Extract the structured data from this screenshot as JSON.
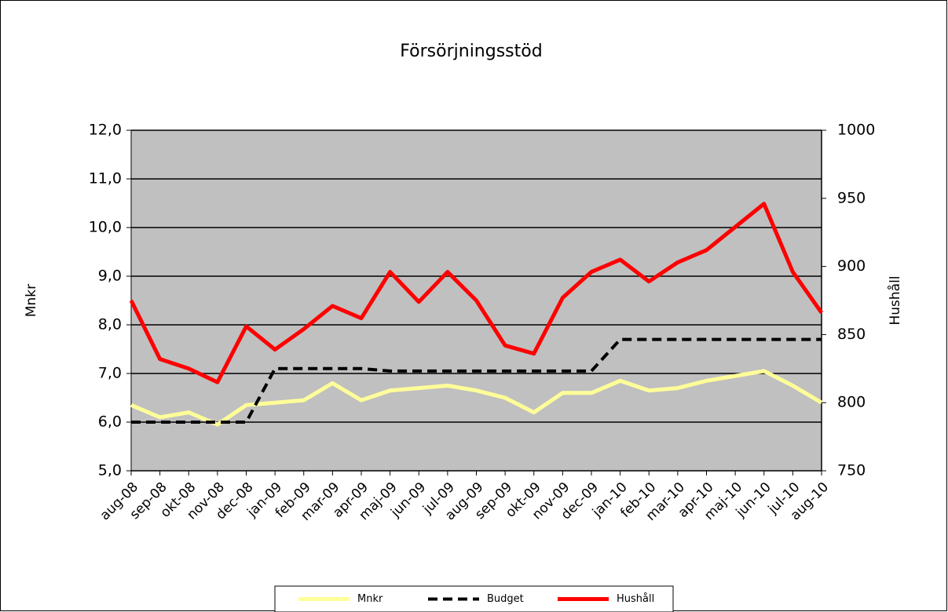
{
  "chart_data": {
    "type": "line",
    "title": "Försörjningsstöd",
    "y_label": "Mnkr",
    "y2_label": "Hushåll",
    "categories": [
      "aug-08",
      "sep-08",
      "okt-08",
      "nov-08",
      "dec-08",
      "jan-09",
      "feb-09",
      "mar-09",
      "apr-09",
      "maj-09",
      "jun-09",
      "jul-09",
      "aug-09",
      "sep-09",
      "okt-09",
      "nov-09",
      "dec-09",
      "jan-10",
      "feb-10",
      "mar-10",
      "apr-10",
      "maj-10",
      "jun-10",
      "jul-10",
      "aug-10"
    ],
    "series": [
      {
        "name": "Mnkr",
        "color": "#ffff99",
        "style": "solid",
        "axis": "y",
        "values": [
          6.35,
          6.1,
          6.2,
          5.95,
          6.35,
          6.4,
          6.45,
          6.8,
          6.45,
          6.65,
          6.7,
          6.75,
          6.65,
          6.5,
          6.2,
          6.6,
          6.6,
          6.85,
          6.65,
          6.7,
          6.85,
          6.95,
          7.05,
          6.75,
          6.4
        ]
      },
      {
        "name": "Budget",
        "color": "#000000",
        "style": "dashed",
        "axis": "y",
        "values": [
          6.0,
          6.0,
          6.0,
          6.0,
          6.0,
          7.1,
          7.1,
          7.1,
          7.1,
          7.05,
          7.05,
          7.05,
          7.05,
          7.05,
          7.05,
          7.05,
          7.05,
          7.7,
          7.7,
          7.7,
          7.7,
          7.7,
          7.7,
          7.7,
          7.7
        ]
      },
      {
        "name": "Hushåll",
        "color": "#ff0000",
        "style": "solid",
        "axis": "y2",
        "values": [
          875,
          832,
          825,
          815,
          856,
          839,
          854,
          871,
          862,
          896,
          874,
          896,
          875,
          842,
          836,
          877,
          896,
          905,
          889,
          903,
          912,
          929,
          946,
          896,
          866
        ]
      }
    ],
    "ylim": [
      5,
      12
    ],
    "yticks": [
      {
        "value": 5,
        "label": "5,0"
      },
      {
        "value": 6,
        "label": "6,0"
      },
      {
        "value": 7,
        "label": "7,0"
      },
      {
        "value": 8,
        "label": "8,0"
      },
      {
        "value": 9,
        "label": "9,0"
      },
      {
        "value": 10,
        "label": "10,0"
      },
      {
        "value": 11,
        "label": "11,0"
      },
      {
        "value": 12,
        "label": "12,0"
      }
    ],
    "y2lim": [
      750,
      1000
    ],
    "y2ticks": [
      750,
      800,
      850,
      900,
      950,
      1000
    ],
    "grid": true,
    "legend": "bottom",
    "plot_background": "#c0c0c0"
  }
}
